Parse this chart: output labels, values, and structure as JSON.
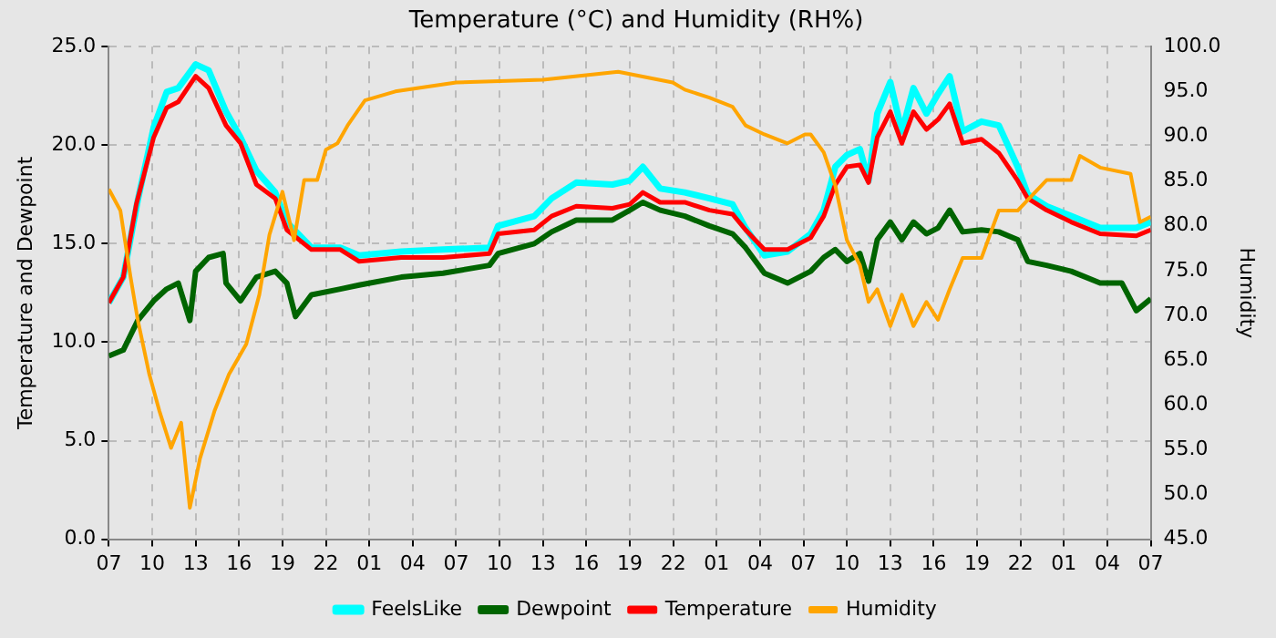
{
  "chart_data": {
    "type": "line",
    "title": "Temperature (°C) and Humidity (RH%)",
    "ylabel": "Temperature and Dewpoint",
    "y2label": "Humidity",
    "xlim": [
      "--01-01T07:00",
      "--01-04T07:00"
    ],
    "xticks": [
      {
        "value": "--01-01T07:00",
        "label": "07"
      },
      {
        "value": "--01-01T10:00",
        "label": "10"
      },
      {
        "value": "--01-01T13:00",
        "label": "13"
      },
      {
        "value": "--01-01T16:00",
        "label": "16"
      },
      {
        "value": "--01-01T19:00",
        "label": "19"
      },
      {
        "value": "--01-01T22:00",
        "label": "22"
      },
      {
        "value": "--01-02T01:00",
        "label": "01"
      },
      {
        "value": "--01-02T04:00",
        "label": "04"
      },
      {
        "value": "--01-02T07:00",
        "label": "07"
      },
      {
        "value": "--01-02T10:00",
        "label": "10"
      },
      {
        "value": "--01-02T13:00",
        "label": "13"
      },
      {
        "value": "--01-02T16:00",
        "label": "16"
      },
      {
        "value": "--01-02T19:00",
        "label": "19"
      },
      {
        "value": "--01-02T22:00",
        "label": "22"
      },
      {
        "value": "--01-03T01:00",
        "label": "01"
      },
      {
        "value": "--01-03T04:00",
        "label": "04"
      },
      {
        "value": "--01-03T07:00",
        "label": "07"
      },
      {
        "value": "--01-03T10:00",
        "label": "10"
      },
      {
        "value": "--01-03T13:00",
        "label": "13"
      },
      {
        "value": "--01-03T16:00",
        "label": "16"
      },
      {
        "value": "--01-03T19:00",
        "label": "19"
      },
      {
        "value": "--01-03T22:00",
        "label": "22"
      },
      {
        "value": "--01-04T01:00",
        "label": "01"
      },
      {
        "value": "--01-04T04:00",
        "label": "04"
      },
      {
        "value": "--01-04T07:00",
        "label": "07"
      }
    ],
    "ylim": [
      0,
      25
    ],
    "yticks": [
      {
        "value": 0,
        "label": "0.0"
      },
      {
        "value": 5,
        "label": "5.0"
      },
      {
        "value": 10,
        "label": "10.0"
      },
      {
        "value": 15,
        "label": "15.0"
      },
      {
        "value": 20,
        "label": "20.0"
      },
      {
        "value": 25,
        "label": "25.0"
      }
    ],
    "y2lim": [
      45,
      100
    ],
    "y2ticks": [
      {
        "value": 45,
        "label": "45.0"
      },
      {
        "value": 50,
        "label": "50.0"
      },
      {
        "value": 55,
        "label": "55.0"
      },
      {
        "value": 60,
        "label": "60.0"
      },
      {
        "value": 65,
        "label": "65.0"
      },
      {
        "value": 70,
        "label": "70.0"
      },
      {
        "value": 75,
        "label": "75.0"
      },
      {
        "value": 80,
        "label": "80.0"
      },
      {
        "value": 85,
        "label": "85.0"
      },
      {
        "value": 90,
        "label": "90.0"
      },
      {
        "value": 95,
        "label": "95.0"
      },
      {
        "value": 100,
        "label": "100.0"
      }
    ],
    "grid": true,
    "legend": "bottom",
    "series": [
      {
        "name": "FeelsLike",
        "color": "#00ffff",
        "x": [
          "--01-01T07:00",
          "--01-01T08:00",
          "--01-01T09:00",
          "--01-01T10:06",
          "--01-01T11:00",
          "--01-01T11:48",
          "--01-01T13:00",
          "--01-01T13:54",
          "--01-01T15:06",
          "--01-01T16:06",
          "--01-01T17:12",
          "--01-01T18:30",
          "--01-01T19:18",
          "--01-01T21:00",
          "--01-01T23:00",
          "--01-02T00:18",
          "--01-02T03:12",
          "--01-02T06:06",
          "--01-02T09:18",
          "--01-02T09:54",
          "--01-02T12:24",
          "--01-02T13:36",
          "--01-02T15:18",
          "--01-02T17:48",
          "--01-02T19:00",
          "--01-02T19:54",
          "--01-02T21:06",
          "--01-02T22:48",
          "--01-03T00:30",
          "--01-03T02:06",
          "--01-03T03:00",
          "--01-03T04:18",
          "--01-03T05:54",
          "--01-03T07:30",
          "--01-03T08:24",
          "--01-03T09:12",
          "--01-03T10:00",
          "--01-03T10:54",
          "--01-03T11:30",
          "--01-03T12:06",
          "--01-03T13:00",
          "--01-03T13:48",
          "--01-03T14:36",
          "--01-03T15:30",
          "--01-03T16:18",
          "--01-03T17:06",
          "--01-03T18:00",
          "--01-03T19:18",
          "--01-03T20:30",
          "--01-03T21:48",
          "--01-03T22:30",
          "--01-03T23:48",
          "--01-04T01:30",
          "--01-04T03:30",
          "--01-04T06:00",
          "--01-04T07:00"
        ],
        "values": [
          12.0,
          13.3,
          17.2,
          20.9,
          22.7,
          22.9,
          24.1,
          23.8,
          21.7,
          20.4,
          18.7,
          17.6,
          16.1,
          14.8,
          14.8,
          14.4,
          14.6,
          14.7,
          14.8,
          15.9,
          16.4,
          17.3,
          18.1,
          18.0,
          18.2,
          18.9,
          17.8,
          17.6,
          17.3,
          17.0,
          15.8,
          14.4,
          14.6,
          15.5,
          16.7,
          18.9,
          19.5,
          19.8,
          18.2,
          21.6,
          23.2,
          20.7,
          22.9,
          21.6,
          22.6,
          23.5,
          20.7,
          21.2,
          21.0,
          18.9,
          17.5,
          16.9,
          16.4,
          15.8,
          15.8,
          16.1
        ]
      },
      {
        "name": "Dewpoint",
        "color": "#006400",
        "x": [
          "--01-01T07:00",
          "--01-01T08:00",
          "--01-01T09:00",
          "--01-01T10:06",
          "--01-01T11:00",
          "--01-01T11:48",
          "--01-01T12:36",
          "--01-01T13:00",
          "--01-01T13:54",
          "--01-01T14:54",
          "--01-01T15:06",
          "--01-01T16:06",
          "--01-01T17:12",
          "--01-01T18:30",
          "--01-01T19:18",
          "--01-01T19:54",
          "--01-01T21:00",
          "--01-01T23:00",
          "--01-02T00:18",
          "--01-02T03:12",
          "--01-02T06:06",
          "--01-02T09:18",
          "--01-02T09:54",
          "--01-02T12:24",
          "--01-02T13:36",
          "--01-02T15:18",
          "--01-02T17:48",
          "--01-02T19:00",
          "--01-02T19:54",
          "--01-02T21:06",
          "--01-02T22:48",
          "--01-03T00:30",
          "--01-03T02:06",
          "--01-03T03:00",
          "--01-03T04:18",
          "--01-03T05:54",
          "--01-03T07:30",
          "--01-03T08:24",
          "--01-03T09:12",
          "--01-03T10:00",
          "--01-03T10:54",
          "--01-03T11:30",
          "--01-03T12:06",
          "--01-03T13:00",
          "--01-03T13:48",
          "--01-03T14:36",
          "--01-03T15:30",
          "--01-03T16:18",
          "--01-03T17:06",
          "--01-03T18:00",
          "--01-03T19:18",
          "--01-03T20:30",
          "--01-03T21:48",
          "--01-03T22:30",
          "--01-03T23:48",
          "--01-04T01:30",
          "--01-04T03:30",
          "--01-04T05:00",
          "--01-04T06:00",
          "--01-04T07:00"
        ],
        "values": [
          9.3,
          9.6,
          11.1,
          12.1,
          12.7,
          13.0,
          11.1,
          13.6,
          14.3,
          14.5,
          13.0,
          12.1,
          13.3,
          13.6,
          13.0,
          11.3,
          12.4,
          12.7,
          12.9,
          13.3,
          13.5,
          13.9,
          14.5,
          15.0,
          15.6,
          16.2,
          16.2,
          16.7,
          17.1,
          16.7,
          16.4,
          15.9,
          15.5,
          14.8,
          13.5,
          13.0,
          13.6,
          14.3,
          14.7,
          14.1,
          14.5,
          13.1,
          15.2,
          16.1,
          15.2,
          16.1,
          15.5,
          15.8,
          16.7,
          15.6,
          15.7,
          15.6,
          15.2,
          14.1,
          13.9,
          13.6,
          13.0,
          13.0,
          11.6,
          12.2
        ]
      },
      {
        "name": "Temperature",
        "color": "#ff0000",
        "x": [
          "--01-01T07:00",
          "--01-01T08:00",
          "--01-01T08:54",
          "--01-01T10:06",
          "--01-01T11:00",
          "--01-01T11:48",
          "--01-01T13:00",
          "--01-01T13:54",
          "--01-01T15:06",
          "--01-01T16:06",
          "--01-01T17:12",
          "--01-01T18:30",
          "--01-01T19:18",
          "--01-01T21:00",
          "--01-01T23:00",
          "--01-02T00:18",
          "--01-02T03:12",
          "--01-02T06:06",
          "--01-02T09:18",
          "--01-02T09:54",
          "--01-02T12:24",
          "--01-02T13:36",
          "--01-02T15:18",
          "--01-02T17:48",
          "--01-02T19:00",
          "--01-02T19:54",
          "--01-02T21:06",
          "--01-02T22:48",
          "--01-03T00:30",
          "--01-03T02:06",
          "--01-03T03:00",
          "--01-03T04:18",
          "--01-03T05:54",
          "--01-03T07:30",
          "--01-03T08:24",
          "--01-03T09:12",
          "--01-03T10:00",
          "--01-03T10:54",
          "--01-03T11:30",
          "--01-03T12:06",
          "--01-03T13:00",
          "--01-03T13:48",
          "--01-03T14:36",
          "--01-03T15:30",
          "--01-03T16:18",
          "--01-03T17:06",
          "--01-03T18:00",
          "--01-03T19:18",
          "--01-03T20:30",
          "--01-03T21:48",
          "--01-03T22:30",
          "--01-03T23:48",
          "--01-04T01:30",
          "--01-04T03:30",
          "--01-04T06:00",
          "--01-04T07:00"
        ],
        "values": [
          12.0,
          13.3,
          17.0,
          20.4,
          21.9,
          22.2,
          23.5,
          22.9,
          21.0,
          20.1,
          18.0,
          17.3,
          15.7,
          14.7,
          14.7,
          14.1,
          14.3,
          14.3,
          14.5,
          15.5,
          15.7,
          16.4,
          16.9,
          16.8,
          17.0,
          17.6,
          17.1,
          17.1,
          16.7,
          16.5,
          15.7,
          14.7,
          14.7,
          15.3,
          16.4,
          18.0,
          18.9,
          19.0,
          18.1,
          20.4,
          21.7,
          20.1,
          21.7,
          20.8,
          21.3,
          22.1,
          20.1,
          20.3,
          19.6,
          18.2,
          17.3,
          16.7,
          16.1,
          15.5,
          15.4,
          15.7
        ]
      },
      {
        "name": "Humidity",
        "color": "#ffa500",
        "axis": "y2",
        "x": [
          "--01-01T07:00",
          "--01-01T07:48",
          "--01-01T08:30",
          "--01-01T09:00",
          "--01-01T09:48",
          "--01-01T10:30",
          "--01-01T11:18",
          "--01-01T12:00",
          "--01-01T12:36",
          "--01-01T13:18",
          "--01-01T14:18",
          "--01-01T15:18",
          "--01-01T16:30",
          "--01-01T17:24",
          "--01-01T18:06",
          "--01-01T19:00",
          "--01-01T19:48",
          "--01-01T20:30",
          "--01-01T21:24",
          "--01-01T22:00",
          "--01-01T22:48",
          "--01-01T23:30",
          "--01-02T00:42",
          "--01-02T02:48",
          "--01-02T07:00",
          "--01-02T13:00",
          "--01-02T18:12",
          "--01-02T21:58",
          "--01-02T22:48",
          "--01-03T00:30",
          "--01-03T02:06",
          "--01-03T03:00",
          "--01-03T04:18",
          "--01-03T05:54",
          "--01-03T07:06",
          "--01-03T07:30",
          "--01-03T08:24",
          "--01-03T09:12",
          "--01-03T10:00",
          "--01-03T10:54",
          "--01-03T11:30",
          "--01-03T12:06",
          "--01-03T13:00",
          "--01-03T13:48",
          "--01-03T14:36",
          "--01-03T15:30",
          "--01-03T16:18",
          "--01-03T17:06",
          "--01-03T18:00",
          "--01-03T19:18",
          "--01-03T20:30",
          "--01-03T21:48",
          "--01-03T23:48",
          "--01-04T01:30",
          "--01-04T02:06",
          "--01-04T03:30",
          "--01-04T05:36",
          "--01-04T06:15",
          "--01-04T07:00"
        ],
        "values": [
          84.1,
          81.7,
          74.3,
          69.5,
          63.4,
          59.3,
          55.2,
          58.0,
          48.5,
          54.0,
          59.3,
          63.4,
          66.8,
          72.3,
          79.0,
          83.8,
          78.4,
          85.1,
          85.1,
          88.5,
          89.2,
          91.2,
          94.0,
          95.0,
          96.0,
          96.3,
          97.2,
          96.0,
          95.2,
          94.3,
          93.3,
          91.2,
          90.2,
          89.2,
          90.2,
          90.2,
          88.2,
          84.5,
          78.4,
          75.6,
          71.5,
          72.9,
          68.8,
          72.3,
          68.8,
          71.5,
          69.5,
          72.9,
          76.4,
          76.4,
          81.7,
          81.7,
          85.1,
          85.1,
          87.8,
          86.5,
          85.8,
          80.4,
          81.0
        ]
      }
    ]
  }
}
